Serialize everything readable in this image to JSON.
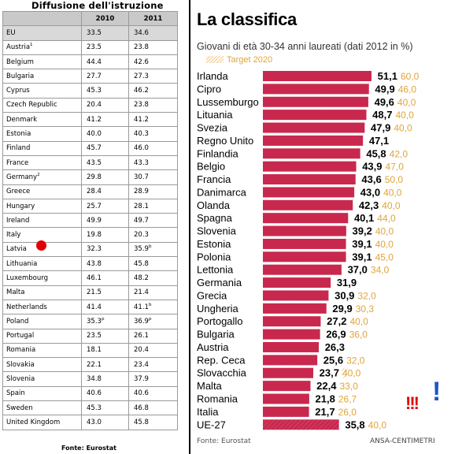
{
  "table": {
    "title": "Diffusione dell'istruzione",
    "headers": [
      "",
      "2010",
      "2011"
    ],
    "rows": [
      {
        "country": "EU",
        "sup": "",
        "v2010": "33.5",
        "sup2010": "",
        "v2011": "34.6",
        "sup2011": "",
        "hl": true
      },
      {
        "country": "Austria",
        "sup": "1",
        "v2010": "23.5",
        "sup2010": "",
        "v2011": "23.8",
        "sup2011": ""
      },
      {
        "country": "Belgium",
        "sup": "",
        "v2010": "44.4",
        "sup2010": "",
        "v2011": "42.6",
        "sup2011": ""
      },
      {
        "country": "Bulgaria",
        "sup": "",
        "v2010": "27.7",
        "sup2010": "",
        "v2011": "27.3",
        "sup2011": ""
      },
      {
        "country": "Cyprus",
        "sup": "",
        "v2010": "45.3",
        "sup2010": "",
        "v2011": "46.2",
        "sup2011": ""
      },
      {
        "country": "Czech Republic",
        "sup": "",
        "v2010": "20.4",
        "sup2010": "",
        "v2011": "23.8",
        "sup2011": ""
      },
      {
        "country": "Denmark",
        "sup": "",
        "v2010": "41.2",
        "sup2010": "",
        "v2011": "41.2",
        "sup2011": ""
      },
      {
        "country": "Estonia",
        "sup": "",
        "v2010": "40.0",
        "sup2010": "",
        "v2011": "40.3",
        "sup2011": ""
      },
      {
        "country": "Finland",
        "sup": "",
        "v2010": "45.7",
        "sup2010": "",
        "v2011": "46.0",
        "sup2011": ""
      },
      {
        "country": "France",
        "sup": "",
        "v2010": "43.5",
        "sup2010": "",
        "v2011": "43.3",
        "sup2011": ""
      },
      {
        "country": "Germany",
        "sup": "2",
        "v2010": "29.8",
        "sup2010": "",
        "v2011": "30.7",
        "sup2011": ""
      },
      {
        "country": "Greece",
        "sup": "",
        "v2010": "28.4",
        "sup2010": "",
        "v2011": "28.9",
        "sup2011": ""
      },
      {
        "country": "Hungary",
        "sup": "",
        "v2010": "25.7",
        "sup2010": "",
        "v2011": "28.1",
        "sup2011": ""
      },
      {
        "country": "Ireland",
        "sup": "",
        "v2010": "49.9",
        "sup2010": "",
        "v2011": "49.7",
        "sup2011": ""
      },
      {
        "country": "Italy",
        "sup": "",
        "v2010": "19.8",
        "sup2010": "",
        "v2011": "20.3",
        "sup2011": "",
        "mark": true
      },
      {
        "country": "Latvia",
        "sup": "",
        "v2010": "32.3",
        "sup2010": "",
        "v2011": "35.9",
        "sup2011": "b"
      },
      {
        "country": "Lithuania",
        "sup": "",
        "v2010": "43.8",
        "sup2010": "",
        "v2011": "45.8",
        "sup2011": ""
      },
      {
        "country": "Luxembourg",
        "sup": "",
        "v2010": "46.1",
        "sup2010": "",
        "v2011": "48.2",
        "sup2011": ""
      },
      {
        "country": "Malta",
        "sup": "",
        "v2010": "21.5",
        "sup2010": "",
        "v2011": "21.4",
        "sup2011": ""
      },
      {
        "country": "Netherlands",
        "sup": "",
        "v2010": "41.4",
        "sup2010": "",
        "v2011": "41.1",
        "sup2011": "b"
      },
      {
        "country": "Poland",
        "sup": "",
        "v2010": "35.3",
        "sup2010": "p",
        "v2011": "36.9",
        "sup2011": "p"
      },
      {
        "country": "Portugal",
        "sup": "",
        "v2010": "23.5",
        "sup2010": "",
        "v2011": "26.1",
        "sup2011": ""
      },
      {
        "country": "Romania",
        "sup": "",
        "v2010": "18.1",
        "sup2010": "",
        "v2011": "20.4",
        "sup2011": ""
      },
      {
        "country": "Slovakia",
        "sup": "",
        "v2010": "22.1",
        "sup2010": "",
        "v2011": "23.4",
        "sup2011": ""
      },
      {
        "country": "Slovenia",
        "sup": "",
        "v2010": "34.8",
        "sup2010": "",
        "v2011": "37.9",
        "sup2011": ""
      },
      {
        "country": "Spain",
        "sup": "",
        "v2010": "40.6",
        "sup2010": "",
        "v2011": "40.6",
        "sup2011": ""
      },
      {
        "country": "Sweden",
        "sup": "",
        "v2010": "45.3",
        "sup2010": "",
        "v2011": "46.8",
        "sup2011": ""
      },
      {
        "country": "United Kingdom",
        "sup": "",
        "v2010": "43.0",
        "sup2010": "",
        "v2011": "45.8",
        "sup2011": ""
      }
    ],
    "source": "Fonte: Eurostat"
  },
  "chart_data": {
    "type": "bar",
    "title": "La classifica",
    "subtitle": "Giovani di età 30-34 anni laureati (dati 2012 in %)",
    "legend": "Target 2020",
    "source": "Fonte: Eurostat",
    "credit": "ANSA-CENTIMETRI",
    "annotations": [
      "!!!",
      "!"
    ],
    "colors": {
      "bar": "#c9284e",
      "target_hatch": "#f0c88a",
      "target_text": "#e1a43a"
    },
    "categories": [
      "Irlanda",
      "Cipro",
      "Lussemburgo",
      "Lituania",
      "Svezia",
      "Regno Unito",
      "Finlandia",
      "Belgio",
      "Francia",
      "Danimarca",
      "Olanda",
      "Spagna",
      "Slovenia",
      "Estonia",
      "Polonia",
      "Lettonia",
      "Germania",
      "Grecia",
      "Ungheria",
      "Portogallo",
      "Bulgaria",
      "Austria",
      "Rep. Ceca",
      "Slovacchia",
      "Malta",
      "Romania",
      "Italia",
      "UE-27"
    ],
    "series": [
      {
        "name": "",
        "values": [
          51.1,
          49.9,
          49.6,
          48.7,
          47.9,
          47.1,
          45.8,
          43.9,
          43.6,
          43.0,
          42.3,
          40.1,
          39.2,
          39.1,
          39.1,
          37.0,
          31.9,
          30.9,
          29.9,
          27.2,
          26.9,
          26.3,
          25.6,
          23.7,
          22.4,
          21.8,
          21.7,
          35.8
        ]
      },
      {
        "name": "Target 2020",
        "values": [
          60.0,
          46.0,
          40.0,
          40.0,
          40.0,
          null,
          42.0,
          47.0,
          50.0,
          40.0,
          40.0,
          44.0,
          40.0,
          40.0,
          45.0,
          34.0,
          null,
          32.0,
          30.3,
          40.0,
          36.0,
          null,
          32.0,
          40.0,
          33.0,
          26.7,
          26.0,
          40.0
        ]
      }
    ],
    "value_labels": [
      "51,1",
      "49,9",
      "49,6",
      "48,7",
      "47,9",
      "47,1",
      "45,8",
      "43,9",
      "43,6",
      "43,0",
      "42,3",
      "40,1",
      "39,2",
      "39,1",
      "39,1",
      "37,0",
      "31,9",
      "30,9",
      "29,9",
      "27,2",
      "26,9",
      "26,3",
      "25,6",
      "23,7",
      "22,4",
      "21,8",
      "21,7",
      "35,8"
    ],
    "target_labels": [
      "60,0",
      "46,0",
      "40,0",
      "40,0",
      "40,0",
      "",
      "42,0",
      "47,0",
      "50,0",
      "40,0",
      "40,0",
      "44,0",
      "40,0",
      "40,0",
      "45,0",
      "34,0",
      "",
      "32,0",
      "30,3",
      "40,0",
      "36,0",
      "",
      "32,0",
      "40,0",
      "33,0",
      "26,7",
      "26,0",
      "40,0"
    ]
  }
}
